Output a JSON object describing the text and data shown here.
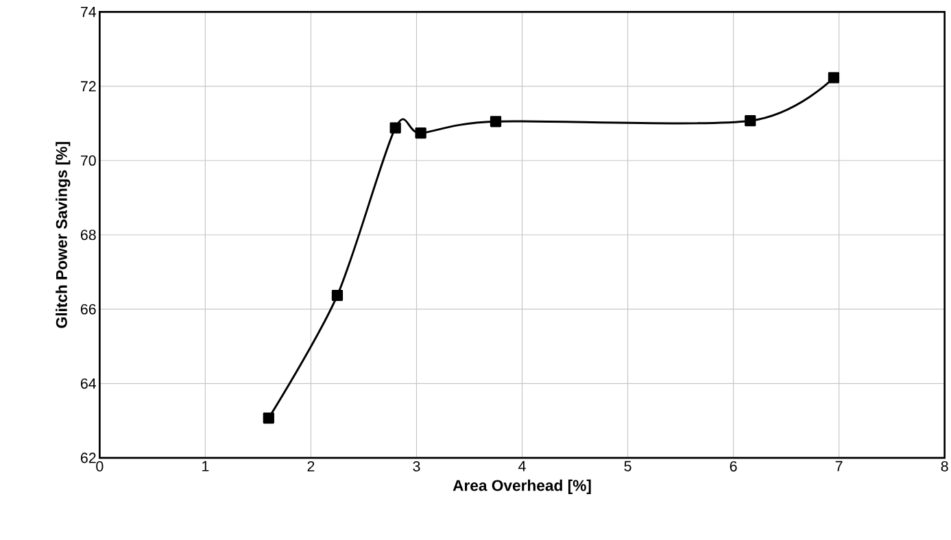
{
  "chart_data": {
    "type": "line",
    "xlabel": "Area Overhead [%]",
    "ylabel": "Glitch Power Savings [%]",
    "x": [
      1.6,
      2.25,
      2.8,
      3.04,
      3.75,
      6.16,
      6.95
    ],
    "values": [
      63.07,
      66.37,
      70.88,
      70.74,
      71.05,
      71.07,
      72.23
    ],
    "color": "#000000",
    "marker": "square",
    "line_style": "solid",
    "grid": true,
    "xlim": [
      0,
      8
    ],
    "ylim": [
      62,
      74
    ],
    "xticks": [
      0,
      1,
      2,
      3,
      4,
      5,
      6,
      7,
      8
    ],
    "yticks": [
      62,
      64,
      66,
      68,
      70,
      72,
      74
    ]
  }
}
